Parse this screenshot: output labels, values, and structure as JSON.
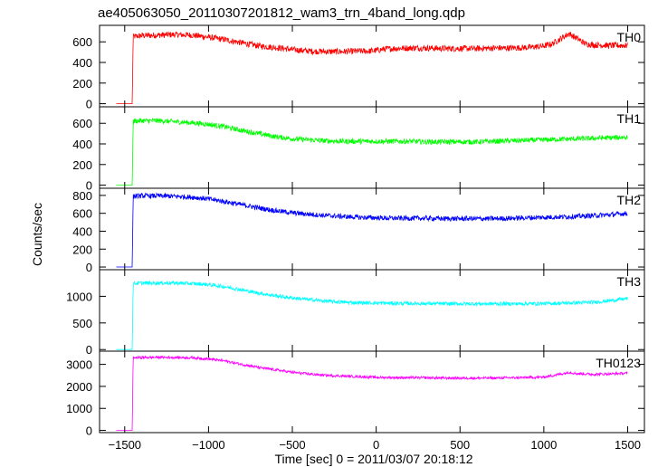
{
  "chart_data": {
    "type": "line",
    "title": "ae405063050_20110307201812_wam3_trn_4band_long.qdp",
    "xlabel": "Time [sec] 0 = 2011/03/07 20:18:12",
    "ylabel": "Counts/sec",
    "xlim": [
      -1650,
      1600
    ],
    "xticks": [
      -1500,
      -1000,
      -500,
      0,
      500,
      1000,
      1500
    ],
    "xtick_labels": [
      "−1500",
      "−1000",
      "−500",
      "0",
      "500",
      "1000",
      "1500"
    ],
    "grid": false,
    "panels": [
      {
        "name": "TH0",
        "color": "#ff0000",
        "ylim": [
          -30,
          760
        ],
        "yticks": [
          0,
          200,
          400,
          600
        ],
        "x": [
          -1550,
          -1455,
          -1450,
          -1400,
          -1300,
          -1200,
          -1100,
          -1000,
          -900,
          -800,
          -700,
          -600,
          -500,
          -400,
          -300,
          -200,
          -100,
          -50,
          0,
          50,
          100,
          200,
          300,
          400,
          500,
          600,
          700,
          800,
          900,
          1000,
          1050,
          1100,
          1150,
          1200,
          1250,
          1300,
          1400,
          1500
        ],
        "y": [
          0,
          0,
          650,
          660,
          665,
          670,
          665,
          645,
          620,
          590,
          560,
          545,
          525,
          510,
          505,
          505,
          510,
          510,
          515,
          530,
          535,
          540,
          540,
          535,
          535,
          535,
          540,
          540,
          545,
          560,
          580,
          630,
          680,
          630,
          580,
          570,
          565,
          565
        ],
        "noise": 30
      },
      {
        "name": "TH1",
        "color": "#00ff00",
        "ylim": [
          -30,
          760
        ],
        "yticks": [
          0,
          200,
          400,
          600
        ],
        "x": [
          -1550,
          -1455,
          -1450,
          -1400,
          -1300,
          -1200,
          -1100,
          -1000,
          -900,
          -800,
          -700,
          -600,
          -500,
          -400,
          -300,
          -200,
          -100,
          0,
          100,
          200,
          300,
          400,
          500,
          600,
          700,
          800,
          900,
          1000,
          1100,
          1200,
          1300,
          1400,
          1500
        ],
        "y": [
          0,
          0,
          620,
          625,
          625,
          615,
          605,
          590,
          565,
          530,
          500,
          470,
          450,
          440,
          430,
          425,
          425,
          425,
          425,
          425,
          420,
          420,
          420,
          420,
          425,
          430,
          435,
          440,
          445,
          450,
          455,
          460,
          465
        ],
        "noise": 25
      },
      {
        "name": "TH2",
        "color": "#0000ff",
        "ylim": [
          -30,
          880
        ],
        "yticks": [
          0,
          200,
          400,
          600,
          800
        ],
        "x": [
          -1550,
          -1455,
          -1450,
          -1400,
          -1300,
          -1200,
          -1100,
          -1000,
          -900,
          -800,
          -700,
          -600,
          -500,
          -400,
          -300,
          -200,
          -100,
          0,
          100,
          200,
          300,
          400,
          500,
          600,
          700,
          800,
          900,
          1000,
          1100,
          1200,
          1300,
          1400,
          1500
        ],
        "y": [
          0,
          0,
          790,
          795,
          795,
          790,
          780,
          760,
          730,
          695,
          660,
          630,
          605,
          590,
          575,
          565,
          555,
          550,
          545,
          545,
          545,
          540,
          540,
          540,
          540,
          545,
          550,
          555,
          560,
          565,
          575,
          585,
          600
        ],
        "noise": 28
      },
      {
        "name": "TH3",
        "color": "#00ffff",
        "ylim": [
          -30,
          1500
        ],
        "yticks": [
          0,
          500,
          1000
        ],
        "x": [
          -1550,
          -1455,
          -1450,
          -1400,
          -1300,
          -1200,
          -1100,
          -1000,
          -900,
          -800,
          -700,
          -600,
          -500,
          -400,
          -300,
          -200,
          -100,
          0,
          100,
          200,
          300,
          400,
          500,
          600,
          700,
          800,
          900,
          1000,
          1100,
          1200,
          1300,
          1400,
          1500
        ],
        "y": [
          0,
          0,
          1240,
          1250,
          1250,
          1250,
          1240,
          1220,
          1180,
          1120,
          1060,
          1010,
          970,
          940,
          910,
          890,
          880,
          875,
          870,
          865,
          865,
          860,
          860,
          860,
          860,
          860,
          860,
          865,
          870,
          880,
          890,
          920,
          960
        ],
        "noise": 35
      },
      {
        "name": "TH0123",
        "color": "#ff00ff",
        "ylim": [
          -100,
          3600
        ],
        "yticks": [
          0,
          1000,
          2000,
          3000
        ],
        "x": [
          -1550,
          -1455,
          -1450,
          -1400,
          -1300,
          -1200,
          -1100,
          -1000,
          -900,
          -800,
          -700,
          -600,
          -500,
          -400,
          -300,
          -200,
          -100,
          0,
          100,
          200,
          300,
          400,
          500,
          600,
          700,
          800,
          900,
          1000,
          1100,
          1150,
          1200,
          1300,
          1400,
          1500
        ],
        "y": [
          0,
          0,
          3300,
          3310,
          3320,
          3315,
          3300,
          3250,
          3150,
          3000,
          2860,
          2750,
          2640,
          2560,
          2500,
          2470,
          2440,
          2410,
          2400,
          2395,
          2390,
          2380,
          2375,
          2375,
          2380,
          2390,
          2400,
          2420,
          2560,
          2640,
          2580,
          2550,
          2570,
          2600
        ],
        "noise": 60
      }
    ]
  }
}
